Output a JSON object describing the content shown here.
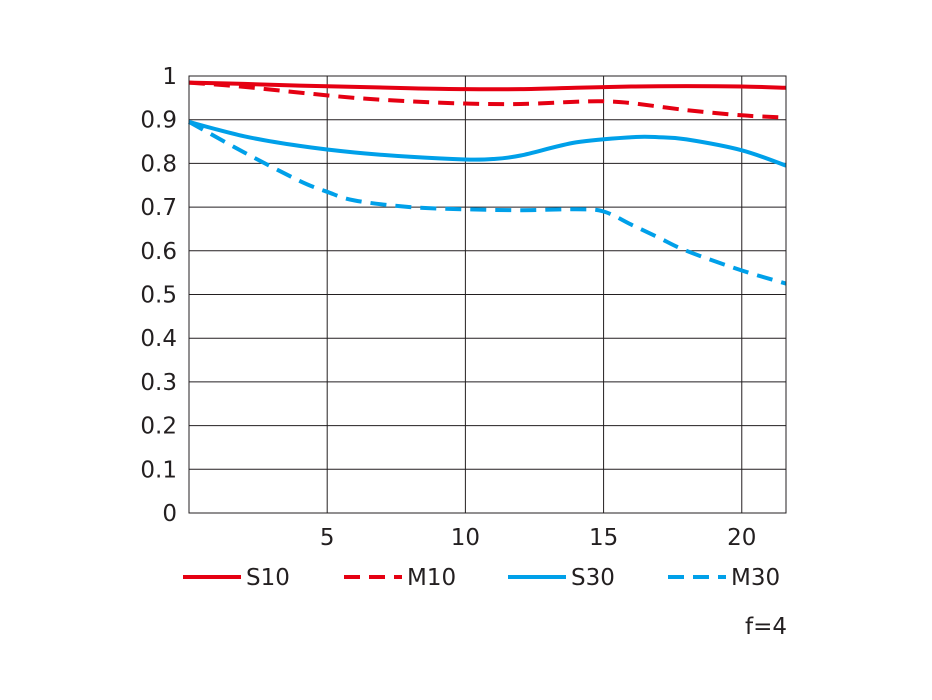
{
  "chart_data": {
    "type": "line",
    "title": "",
    "xlabel": "",
    "ylabel": "",
    "xlim": [
      0,
      21.6
    ],
    "ylim": [
      0,
      1
    ],
    "x_ticks": [
      5,
      10,
      15,
      20
    ],
    "y_ticks": [
      0,
      0.1,
      0.2,
      0.3,
      0.4,
      0.5,
      0.6,
      0.7,
      0.8,
      0.9,
      1
    ],
    "x_tick_labels": [
      "5",
      "10",
      "15",
      "20"
    ],
    "y_tick_labels": [
      "0",
      "0.1",
      "0.2",
      "0.3",
      "0.4",
      "0.5",
      "0.6",
      "0.7",
      "0.8",
      "0.9",
      "1"
    ],
    "grid": true,
    "legend_position": "bottom",
    "annotation": "f=4",
    "series": [
      {
        "name": "S10",
        "color": "#e50012",
        "dash": "solid",
        "x": [
          0,
          2,
          4,
          6,
          8,
          10,
          12,
          14,
          16,
          18,
          20,
          21.6
        ],
        "y": [
          0.985,
          0.982,
          0.978,
          0.975,
          0.972,
          0.97,
          0.97,
          0.973,
          0.976,
          0.977,
          0.976,
          0.973
        ]
      },
      {
        "name": "M10",
        "color": "#e50012",
        "dash": "dashed",
        "x": [
          0,
          2,
          4,
          6,
          8,
          10,
          12,
          14,
          15,
          16,
          18,
          20,
          21.6
        ],
        "y": [
          0.985,
          0.975,
          0.962,
          0.95,
          0.942,
          0.937,
          0.936,
          0.941,
          0.942,
          0.938,
          0.922,
          0.91,
          0.905
        ]
      },
      {
        "name": "S30",
        "color": "#00a0e9",
        "dash": "solid",
        "x": [
          0,
          2,
          4,
          6,
          8,
          10,
          11,
          12,
          14,
          16,
          17,
          18,
          20,
          21.6
        ],
        "y": [
          0.895,
          0.862,
          0.84,
          0.825,
          0.815,
          0.809,
          0.81,
          0.818,
          0.848,
          0.86,
          0.86,
          0.855,
          0.83,
          0.795
        ]
      },
      {
        "name": "M30",
        "color": "#00a0e9",
        "dash": "dashed",
        "x": [
          0,
          2,
          4,
          5,
          6,
          8,
          10,
          12,
          14,
          15,
          16,
          17,
          18,
          20,
          21.6
        ],
        "y": [
          0.895,
          0.825,
          0.76,
          0.735,
          0.715,
          0.7,
          0.695,
          0.693,
          0.695,
          0.69,
          0.66,
          0.63,
          0.6,
          0.555,
          0.525
        ]
      }
    ]
  }
}
